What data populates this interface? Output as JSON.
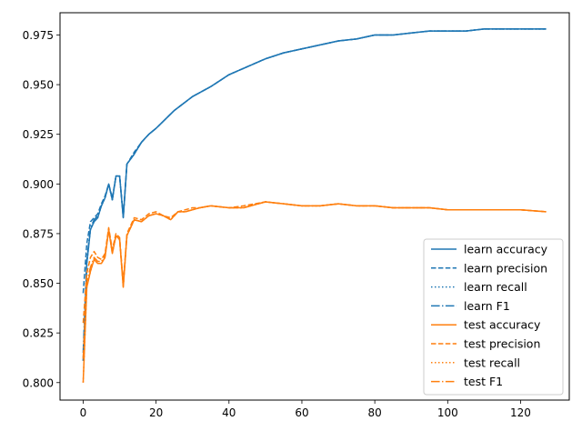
{
  "chart_data": {
    "type": "line",
    "title": "",
    "xlabel": "",
    "ylabel": "",
    "xlim": [
      -6.35,
      133.35
    ],
    "ylim": [
      0.7912,
      0.9862
    ],
    "xticks": [
      0,
      20,
      40,
      60,
      80,
      100,
      120
    ],
    "xtick_labels": [
      "0",
      "20",
      "40",
      "60",
      "80",
      "100",
      "120"
    ],
    "yticks": [
      0.8,
      0.825,
      0.85,
      0.875,
      0.9,
      0.925,
      0.95,
      0.975
    ],
    "ytick_labels": [
      "0.800",
      "0.825",
      "0.850",
      "0.875",
      "0.900",
      "0.925",
      "0.950",
      "0.975"
    ],
    "grid": false,
    "legend_position": "lower-right",
    "series": [
      {
        "name": "learn accuracy",
        "color": "#1f77b4",
        "dash": "solid",
        "x": [
          0,
          1,
          2,
          3,
          4,
          5,
          6,
          7,
          8,
          9,
          10,
          11,
          12,
          14,
          16,
          18,
          20,
          25,
          30,
          35,
          40,
          45,
          50,
          55,
          60,
          65,
          70,
          75,
          80,
          85,
          90,
          95,
          100,
          105,
          110,
          115,
          120,
          127
        ],
        "y": [
          0.811,
          0.86,
          0.877,
          0.881,
          0.883,
          0.889,
          0.893,
          0.9,
          0.892,
          0.904,
          0.904,
          0.883,
          0.91,
          0.915,
          0.921,
          0.925,
          0.928,
          0.937,
          0.944,
          0.949,
          0.955,
          0.959,
          0.963,
          0.966,
          0.968,
          0.97,
          0.972,
          0.973,
          0.975,
          0.975,
          0.976,
          0.977,
          0.977,
          0.977,
          0.978,
          0.978,
          0.978,
          0.978
        ]
      },
      {
        "name": "learn precision",
        "color": "#1f77b4",
        "dash": "dashed",
        "x": [
          0,
          1,
          2,
          3,
          4,
          5,
          6,
          7,
          8,
          9,
          10,
          11,
          12,
          14,
          16,
          18,
          20,
          25,
          30,
          35,
          40,
          45,
          50,
          55,
          60,
          65,
          70,
          75,
          80,
          85,
          90,
          95,
          100,
          105,
          110,
          115,
          120,
          127
        ],
        "y": [
          0.845,
          0.87,
          0.881,
          0.883,
          0.885,
          0.89,
          0.894,
          0.9,
          0.893,
          0.904,
          0.904,
          0.884,
          0.91,
          0.916,
          0.921,
          0.925,
          0.928,
          0.937,
          0.944,
          0.949,
          0.955,
          0.959,
          0.963,
          0.966,
          0.968,
          0.97,
          0.972,
          0.973,
          0.975,
          0.975,
          0.976,
          0.977,
          0.977,
          0.977,
          0.978,
          0.978,
          0.978,
          0.978
        ]
      },
      {
        "name": "learn recall",
        "color": "#1f77b4",
        "dash": "dotted",
        "x": [
          0,
          1,
          2,
          3,
          4,
          5,
          6,
          7,
          8,
          9,
          10,
          11,
          12,
          14,
          16,
          18,
          20,
          25,
          30,
          35,
          40,
          45,
          50,
          55,
          60,
          65,
          70,
          75,
          80,
          85,
          90,
          95,
          100,
          105,
          110,
          115,
          120,
          127
        ],
        "y": [
          0.811,
          0.86,
          0.877,
          0.881,
          0.883,
          0.889,
          0.893,
          0.9,
          0.892,
          0.904,
          0.904,
          0.883,
          0.91,
          0.915,
          0.921,
          0.925,
          0.928,
          0.937,
          0.944,
          0.949,
          0.955,
          0.959,
          0.963,
          0.966,
          0.968,
          0.97,
          0.972,
          0.973,
          0.975,
          0.975,
          0.976,
          0.977,
          0.977,
          0.977,
          0.978,
          0.978,
          0.978,
          0.978
        ]
      },
      {
        "name": "learn F1",
        "color": "#1f77b4",
        "dash": "dashdot",
        "x": [
          0,
          1,
          2,
          3,
          4,
          5,
          6,
          7,
          8,
          9,
          10,
          11,
          12,
          14,
          16,
          18,
          20,
          25,
          30,
          35,
          40,
          45,
          50,
          55,
          60,
          65,
          70,
          75,
          80,
          85,
          90,
          95,
          100,
          105,
          110,
          115,
          120,
          127
        ],
        "y": [
          0.815,
          0.862,
          0.878,
          0.882,
          0.884,
          0.889,
          0.893,
          0.9,
          0.892,
          0.904,
          0.904,
          0.883,
          0.91,
          0.915,
          0.921,
          0.925,
          0.928,
          0.937,
          0.944,
          0.949,
          0.955,
          0.959,
          0.963,
          0.966,
          0.968,
          0.97,
          0.972,
          0.973,
          0.975,
          0.975,
          0.976,
          0.977,
          0.977,
          0.977,
          0.978,
          0.978,
          0.978,
          0.978
        ]
      },
      {
        "name": "test accuracy",
        "color": "#ff7f0e",
        "dash": "solid",
        "x": [
          0,
          1,
          2,
          3,
          4,
          5,
          6,
          7,
          8,
          9,
          10,
          11,
          12,
          14,
          16,
          18,
          20,
          22,
          24,
          26,
          28,
          30,
          32,
          35,
          40,
          44,
          50,
          55,
          60,
          65,
          70,
          75,
          80,
          85,
          90,
          95,
          100,
          105,
          110,
          115,
          120,
          127
        ],
        "y": [
          0.8,
          0.848,
          0.856,
          0.862,
          0.86,
          0.86,
          0.863,
          0.877,
          0.865,
          0.874,
          0.872,
          0.848,
          0.874,
          0.882,
          0.881,
          0.884,
          0.885,
          0.884,
          0.882,
          0.886,
          0.886,
          0.887,
          0.888,
          0.889,
          0.888,
          0.888,
          0.891,
          0.89,
          0.889,
          0.889,
          0.89,
          0.889,
          0.889,
          0.888,
          0.888,
          0.888,
          0.887,
          0.887,
          0.887,
          0.887,
          0.887,
          0.886
        ]
      },
      {
        "name": "test precision",
        "color": "#ff7f0e",
        "dash": "dashed",
        "x": [
          0,
          1,
          2,
          3,
          4,
          5,
          6,
          7,
          8,
          9,
          10,
          11,
          12,
          14,
          16,
          18,
          20,
          22,
          24,
          26,
          28,
          30,
          32,
          35,
          40,
          44,
          50,
          55,
          60,
          65,
          70,
          75,
          80,
          85,
          90,
          95,
          100,
          105,
          110,
          115,
          120,
          127
        ],
        "y": [
          0.83,
          0.855,
          0.863,
          0.866,
          0.863,
          0.862,
          0.865,
          0.878,
          0.867,
          0.875,
          0.873,
          0.85,
          0.875,
          0.883,
          0.882,
          0.885,
          0.886,
          0.884,
          0.883,
          0.886,
          0.887,
          0.888,
          0.888,
          0.889,
          0.888,
          0.889,
          0.891,
          0.89,
          0.889,
          0.889,
          0.89,
          0.889,
          0.889,
          0.888,
          0.888,
          0.888,
          0.887,
          0.887,
          0.887,
          0.887,
          0.887,
          0.886
        ]
      },
      {
        "name": "test recall",
        "color": "#ff7f0e",
        "dash": "dotted",
        "x": [
          0,
          1,
          2,
          3,
          4,
          5,
          6,
          7,
          8,
          9,
          10,
          11,
          12,
          14,
          16,
          18,
          20,
          22,
          24,
          26,
          28,
          30,
          32,
          35,
          40,
          44,
          50,
          55,
          60,
          65,
          70,
          75,
          80,
          85,
          90,
          95,
          100,
          105,
          110,
          115,
          120,
          127
        ],
        "y": [
          0.8,
          0.848,
          0.856,
          0.862,
          0.86,
          0.86,
          0.863,
          0.877,
          0.865,
          0.874,
          0.872,
          0.848,
          0.874,
          0.882,
          0.881,
          0.884,
          0.885,
          0.884,
          0.882,
          0.886,
          0.886,
          0.887,
          0.888,
          0.889,
          0.888,
          0.888,
          0.891,
          0.89,
          0.889,
          0.889,
          0.89,
          0.889,
          0.889,
          0.888,
          0.888,
          0.888,
          0.887,
          0.887,
          0.887,
          0.887,
          0.887,
          0.886
        ]
      },
      {
        "name": "test F1",
        "color": "#ff7f0e",
        "dash": "dashdot",
        "x": [
          0,
          1,
          2,
          3,
          4,
          5,
          6,
          7,
          8,
          9,
          10,
          11,
          12,
          14,
          16,
          18,
          20,
          22,
          24,
          26,
          28,
          30,
          32,
          35,
          40,
          44,
          50,
          55,
          60,
          65,
          70,
          75,
          80,
          85,
          90,
          95,
          100,
          105,
          110,
          115,
          120,
          127
        ],
        "y": [
          0.812,
          0.851,
          0.858,
          0.863,
          0.861,
          0.861,
          0.864,
          0.877,
          0.866,
          0.874,
          0.872,
          0.849,
          0.874,
          0.882,
          0.881,
          0.884,
          0.885,
          0.884,
          0.882,
          0.886,
          0.886,
          0.887,
          0.888,
          0.889,
          0.888,
          0.888,
          0.891,
          0.89,
          0.889,
          0.889,
          0.89,
          0.889,
          0.889,
          0.888,
          0.888,
          0.888,
          0.887,
          0.887,
          0.887,
          0.887,
          0.887,
          0.886
        ]
      }
    ]
  }
}
